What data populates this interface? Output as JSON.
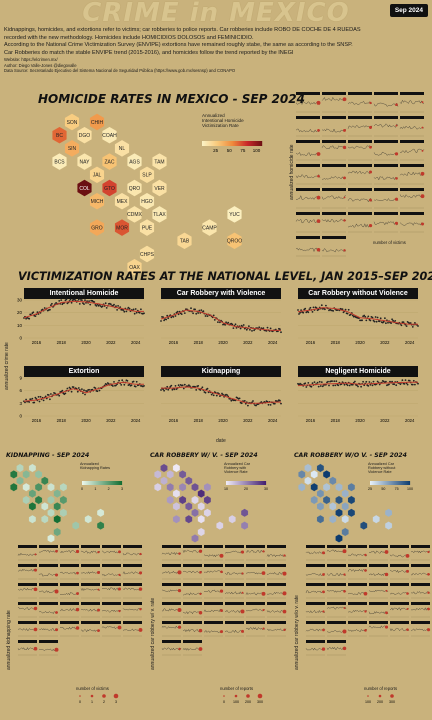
{
  "header": {
    "title": "CRIME in MEXICO",
    "badge": "Sep 2024",
    "intro": [
      "Kidnappings, homicides, and extortions refer to victims; car robberies to police reports. Car robberies include ROBO DE COCHE DE 4 RUEDAS",
      "recorded with the new methodology. Homicides include HOMICIDIOS DOLOSOS and FEMINICIDIO.",
      "According to the National Crime Victimization Survey (ENVIPE) extortions have remained roughly stabe, the same as according to the SNSP.",
      "Car Robberies do match the stable ENVIPE trend (2015-2016), and homicides follow the trend reported by the INEGI"
    ],
    "website": "Website: https://elcrimen.mx/",
    "author": "Author: Diego Valle-Jones @diegovalle",
    "source": "Data Source: Secretariado Ejecutivo del Sistema Nacional de Seguridad Pública (https://www.gob.mx/sesnsp) and CONAPO"
  },
  "homicide_section": {
    "title": "HOMICIDE RATES IN MEXICO - SEP 2024",
    "legend_title": "Annualized\nIntentional Homicide\nVictimization Rate",
    "legend_ticks": [
      "25",
      "50",
      "75",
      "100"
    ],
    "y_label": "annualized homicide rate",
    "size_legend_title": "number of victims",
    "states": [
      {
        "abbr": "SON",
        "v": 25
      },
      {
        "abbr": "CHIH",
        "v": 48
      },
      {
        "abbr": "BC",
        "v": 65
      },
      {
        "abbr": "DGO",
        "v": 12
      },
      {
        "abbr": "COAH",
        "v": 6
      },
      {
        "abbr": "SIN",
        "v": 40
      },
      {
        "abbr": "NL",
        "v": 12
      },
      {
        "abbr": "BCS",
        "v": 4
      },
      {
        "abbr": "NAY",
        "v": 8
      },
      {
        "abbr": "ZAC",
        "v": 30
      },
      {
        "abbr": "AGS",
        "v": 5
      },
      {
        "abbr": "TAM",
        "v": 10
      },
      {
        "abbr": "JAL",
        "v": 20
      },
      {
        "abbr": "SLP",
        "v": 14
      },
      {
        "abbr": "COL",
        "v": 110
      },
      {
        "abbr": "GTO",
        "v": 75
      },
      {
        "abbr": "QRO",
        "v": 8
      },
      {
        "abbr": "VER",
        "v": 12
      },
      {
        "abbr": "MICH",
        "v": 35
      },
      {
        "abbr": "MEX",
        "v": 12
      },
      {
        "abbr": "HGO",
        "v": 7
      },
      {
        "abbr": "CDMX",
        "v": 10
      },
      {
        "abbr": "TLAX",
        "v": 6
      },
      {
        "abbr": "YUC",
        "v": 2
      },
      {
        "abbr": "GRO",
        "v": 42
      },
      {
        "abbr": "MOR",
        "v": 70
      },
      {
        "abbr": "PUE",
        "v": 12
      },
      {
        "abbr": "CAMP",
        "v": 9
      },
      {
        "abbr": "TAB",
        "v": 18
      },
      {
        "abbr": "QROO",
        "v": 30
      },
      {
        "abbr": "CHPS",
        "v": 14
      },
      {
        "abbr": "OAX",
        "v": 20
      }
    ]
  },
  "national_section": {
    "title": "VICTIMIZATION RATES AT THE NATIONAL LEVEL, JAN 2015–SEP 2024",
    "y_label": "annualized crime rate",
    "x_label": "date",
    "x_ticks": [
      "2016",
      "2018",
      "2020",
      "2022",
      "2024"
    ]
  },
  "chart_data": [
    {
      "type": "scatter",
      "title": "Intentional Homicide",
      "ylim": [
        0,
        30
      ],
      "y_ticks": [
        "0",
        "10",
        "20",
        "30"
      ],
      "x_start": 2015.0,
      "x_end": 2024.67,
      "trend": [
        [
          2015,
          16
        ],
        [
          2016,
          19
        ],
        [
          2017,
          24
        ],
        [
          2018,
          28
        ],
        [
          2019,
          29
        ],
        [
          2020,
          28.5
        ],
        [
          2021,
          27
        ],
        [
          2022,
          25
        ],
        [
          2023,
          23
        ],
        [
          2024,
          21
        ]
      ]
    },
    {
      "type": "scatter",
      "title": "Car Robbery with Violence",
      "ylim": [
        0,
        30
      ],
      "y_ticks": [
        "0",
        "10",
        "20",
        "30"
      ],
      "x_start": 2015.0,
      "x_end": 2024.67,
      "trend": [
        [
          2015,
          15
        ],
        [
          2016,
          18
        ],
        [
          2017,
          22
        ],
        [
          2018,
          21
        ],
        [
          2019,
          18
        ],
        [
          2020,
          12
        ],
        [
          2021,
          9
        ],
        [
          2022,
          8
        ],
        [
          2023,
          7
        ],
        [
          2024,
          6
        ]
      ]
    },
    {
      "type": "scatter",
      "title": "Car Robbery without Violence",
      "ylim": [
        0,
        75
      ],
      "y_ticks": [
        "0",
        "25",
        "50",
        "75"
      ],
      "x_start": 2015.0,
      "x_end": 2024.67,
      "trend": [
        [
          2015,
          52
        ],
        [
          2016,
          55
        ],
        [
          2017,
          60
        ],
        [
          2018,
          58
        ],
        [
          2019,
          52
        ],
        [
          2020,
          40
        ],
        [
          2021,
          38
        ],
        [
          2022,
          34
        ],
        [
          2023,
          30
        ],
        [
          2024,
          27
        ]
      ]
    },
    {
      "type": "scatter",
      "title": "Extortion",
      "ylim": [
        0,
        9
      ],
      "y_ticks": [
        "0",
        "3",
        "6",
        "9"
      ],
      "x_start": 2015.0,
      "x_end": 2024.67,
      "trend": [
        [
          2015,
          3.5
        ],
        [
          2016,
          3.8
        ],
        [
          2017,
          4.5
        ],
        [
          2018,
          5.5
        ],
        [
          2019,
          6.5
        ],
        [
          2020,
          5.5
        ],
        [
          2021,
          6.5
        ],
        [
          2022,
          7.5
        ],
        [
          2023,
          8
        ],
        [
          2024,
          7.5
        ]
      ]
    },
    {
      "type": "scatter",
      "title": "Kidnapping",
      "ylim": [
        0,
        1.5
      ],
      "y_ticks": [
        "0.0",
        "0.5",
        "1.0",
        "1.5"
      ],
      "x_start": 2015.0,
      "x_end": 2024.67,
      "trend": [
        [
          2015,
          1.1
        ],
        [
          2016,
          1.1
        ],
        [
          2017,
          1.15
        ],
        [
          2018,
          1.1
        ],
        [
          2019,
          0.95
        ],
        [
          2020,
          0.8
        ],
        [
          2021,
          0.65
        ],
        [
          2022,
          0.5
        ],
        [
          2023,
          0.5
        ],
        [
          2024,
          0.55
        ]
      ]
    },
    {
      "type": "scatter",
      "title": "Negligent Homicide",
      "ylim": [
        0,
        15
      ],
      "y_ticks": [
        "0",
        "5",
        "10",
        "15"
      ],
      "x_start": 2015.0,
      "x_end": 2024.67,
      "trend": [
        [
          2015,
          12
        ],
        [
          2016,
          12.3
        ],
        [
          2017,
          12.6
        ],
        [
          2018,
          12.8
        ],
        [
          2019,
          13
        ],
        [
          2020,
          12.5
        ],
        [
          2021,
          12.8
        ],
        [
          2022,
          13
        ],
        [
          2023,
          13.2
        ],
        [
          2024,
          13.3
        ]
      ]
    }
  ],
  "lower_maps": [
    {
      "title": "KIDNAPPING - SEP 2024",
      "legend": "Annualized\nKidnapping Rates",
      "ticks": [
        "0",
        "1",
        "2",
        "3"
      ],
      "y_label": "annualized kidnapping rate",
      "size_legend": "number of victims",
      "size_ticks": [
        "0",
        "1",
        "2",
        "3"
      ],
      "low": "#eaf6ea",
      "high": "#0e6b2e"
    },
    {
      "title": "CAR ROBBERY W/ V. - SEP 2024",
      "legend": "Annualized Car\nRobbery with\nViolence Rate",
      "ticks": [
        "10",
        "20",
        "30"
      ],
      "y_label": "annualized car robbery w/ v. rate",
      "size_legend": "number of reports",
      "size_ticks": [
        "0",
        "100",
        "200",
        "300"
      ],
      "low": "#efeaf6",
      "high": "#3f1b6e"
    },
    {
      "title": "CAR ROBBERY W/O V. - SEP 2024",
      "legend": "Annualized Car\nRobbery without\nViolence Rate",
      "ticks": [
        "25",
        "50",
        "75",
        "100"
      ],
      "y_label": "annualized car robbery w/o v. rate",
      "size_legend": "number of reports",
      "size_ticks": [
        "100",
        "200",
        "300"
      ],
      "low": "#e6f0f8",
      "high": "#0b3b6e"
    }
  ],
  "colors": {
    "background": "#c9b27c",
    "panel_head": "#111111",
    "point": "#222222",
    "trend": "#c0392b"
  }
}
